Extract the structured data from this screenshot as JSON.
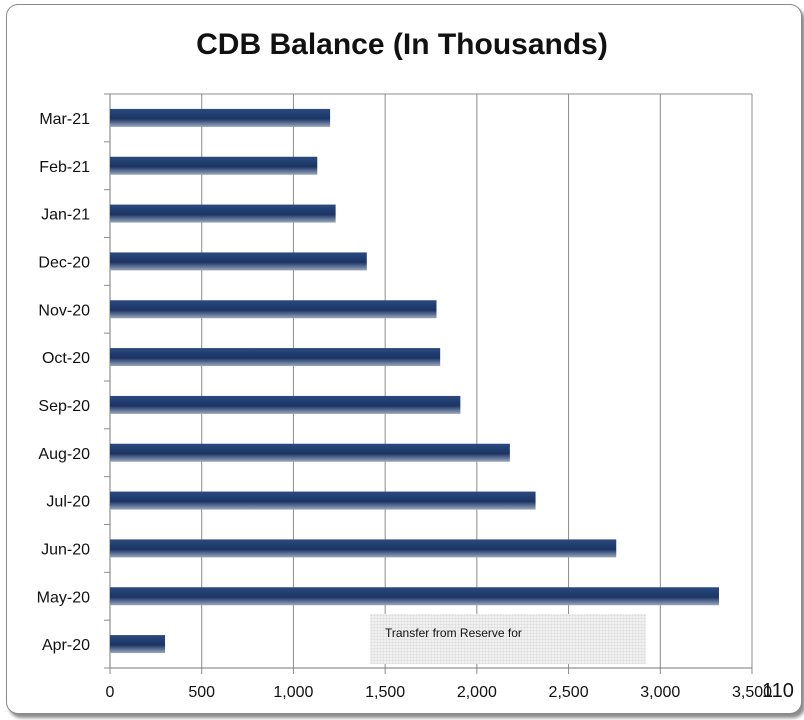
{
  "chart_data": {
    "type": "bar",
    "orientation": "horizontal",
    "title": "CDB Balance (In Thousands)",
    "xlabel": "",
    "ylabel": "",
    "categories": [
      "Apr-20",
      "May-20",
      "Jun-20",
      "Jul-20",
      "Aug-20",
      "Sep-20",
      "Oct-20",
      "Nov-20",
      "Dec-20",
      "Jan-21",
      "Feb-21",
      "Mar-21"
    ],
    "values": [
      300,
      3320,
      2760,
      2320,
      2180,
      1910,
      1800,
      1780,
      1400,
      1230,
      1130,
      1200
    ],
    "xlim": [
      0,
      3500
    ],
    "x_ticks": [
      "0",
      "500",
      "1,000",
      "1,500",
      "2,000",
      "2,500",
      "3,000",
      "3,500"
    ],
    "grid": "vertical",
    "bar_color": "#1f3a6b",
    "annotation": "Transfer from Reserve for"
  },
  "page_number": "110"
}
